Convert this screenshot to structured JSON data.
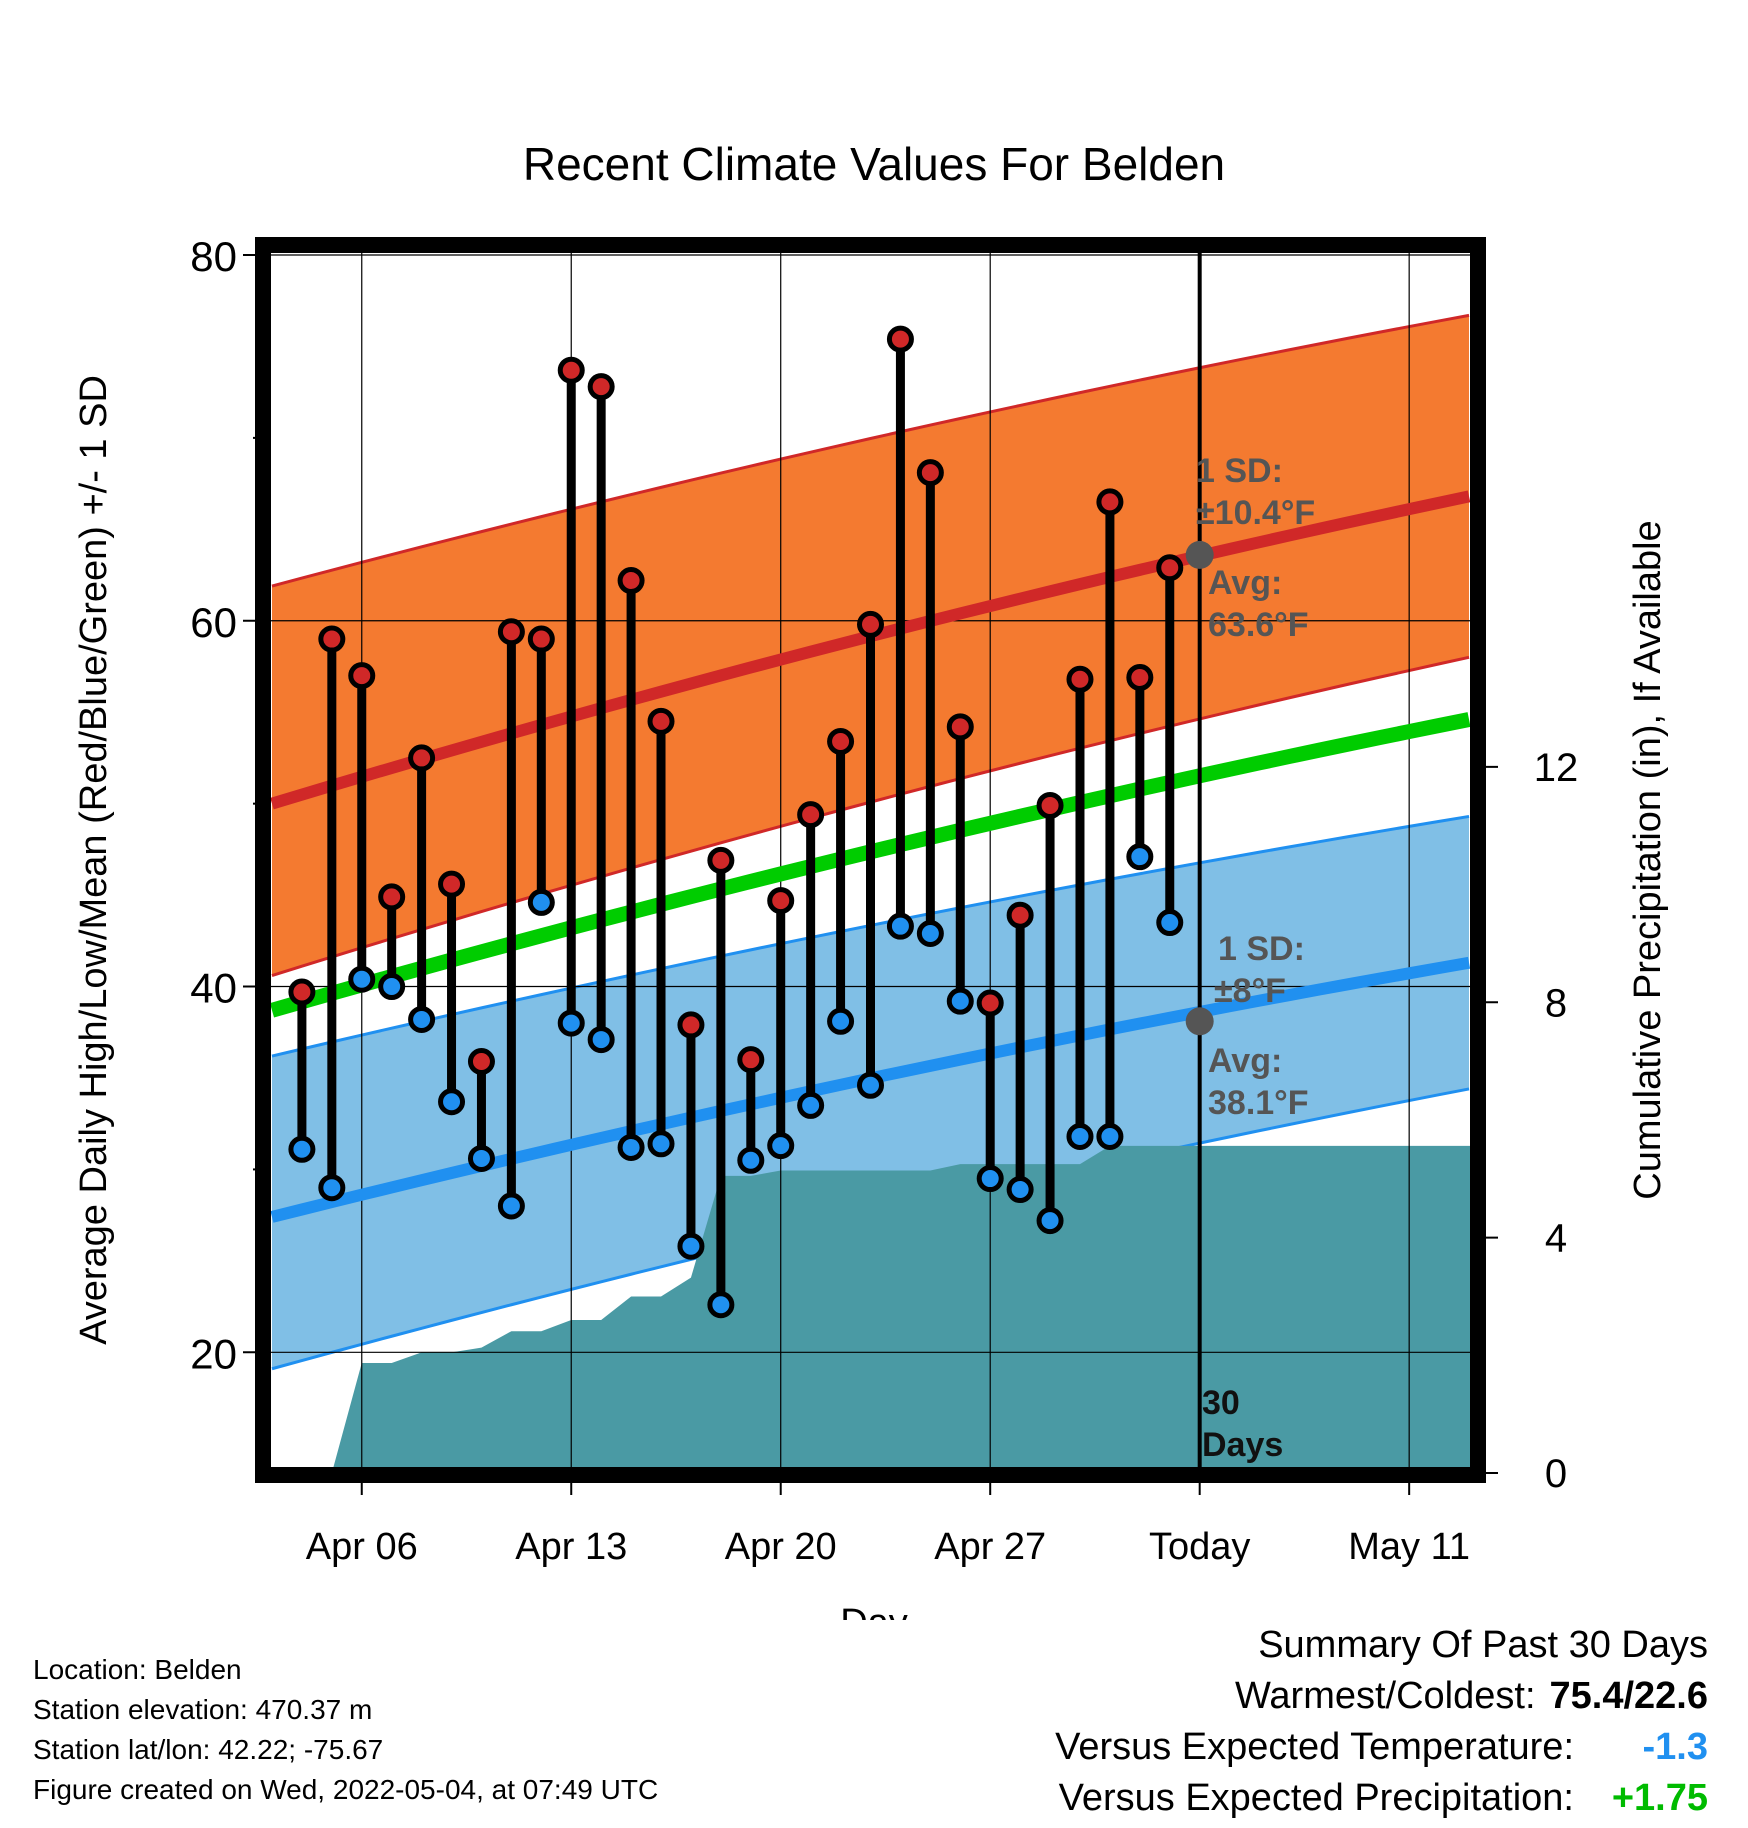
{
  "chart_data": {
    "type": "line",
    "title": "Recent Climate Values For Belden",
    "xlabel": "Day",
    "ylabel": "Average Daily High/Low/Mean (Red/Blue/Green) +/- 1 SD",
    "y2label": "Cumulative Precipitation (in), If Available",
    "ylim": [
      13.4,
      80
    ],
    "y2lim": [
      0,
      20.7
    ],
    "yticks": [
      "20",
      "40",
      "60",
      "80"
    ],
    "y2ticks": [
      "0",
      "4",
      "8",
      "12"
    ],
    "xticks": [
      "Apr 06",
      "Apr 13",
      "Apr 20",
      "Apr 27",
      "Today",
      "May 11"
    ],
    "xtick_days": [
      3,
      10,
      17,
      24,
      31,
      38
    ],
    "xlim": [
      -0.3,
      40.3
    ],
    "today_day": 31,
    "daily": {
      "day": [
        1,
        2,
        3,
        4,
        5,
        6,
        7,
        8,
        9,
        10,
        11,
        12,
        13,
        14,
        15,
        16,
        17,
        18,
        19,
        20,
        21,
        22,
        23,
        24,
        25,
        26,
        27,
        28,
        29,
        30
      ],
      "high": [
        39.7,
        59.0,
        57.0,
        44.9,
        52.5,
        45.6,
        35.9,
        59.4,
        59.0,
        73.7,
        72.8,
        62.2,
        54.5,
        37.9,
        46.9,
        36.0,
        44.7,
        49.4,
        53.4,
        59.8,
        75.4,
        68.1,
        54.2,
        39.1,
        43.9,
        49.9,
        56.8,
        66.5,
        56.9,
        62.9
      ],
      "low": [
        31.1,
        29.0,
        40.4,
        40.0,
        38.2,
        33.7,
        30.6,
        28.0,
        44.6,
        38.0,
        37.1,
        31.2,
        31.4,
        25.8,
        22.6,
        30.5,
        31.3,
        33.5,
        38.1,
        34.6,
        43.3,
        42.9,
        39.2,
        29.5,
        28.9,
        27.2,
        31.8,
        31.8,
        47.1,
        43.5
      ]
    },
    "normals": {
      "day": [
        0,
        40
      ],
      "high_mean": [
        50.0,
        66.8
      ],
      "high_sd_upper": [
        61.9,
        76.7
      ],
      "high_sd_lower": [
        40.6,
        58.0
      ],
      "low_mean": [
        27.4,
        41.3
      ],
      "low_sd_upper": [
        36.2,
        49.3
      ],
      "low_sd_lower": [
        19.1,
        34.4
      ],
      "mean": [
        38.7,
        54.6
      ]
    },
    "precip": {
      "day": [
        2,
        3,
        4,
        5,
        6,
        7,
        8,
        9,
        10,
        11,
        12,
        13,
        14,
        15,
        16,
        17,
        18,
        19,
        20,
        21,
        22,
        23,
        24,
        25,
        26,
        27,
        28,
        29,
        30,
        31,
        40.3
      ],
      "cumulative": [
        0,
        1.87,
        1.87,
        2.05,
        2.05,
        2.13,
        2.41,
        2.41,
        2.6,
        2.6,
        3.0,
        3.0,
        3.32,
        5.05,
        5.05,
        5.14,
        5.14,
        5.14,
        5.14,
        5.14,
        5.14,
        5.25,
        5.25,
        5.25,
        5.25,
        5.25,
        5.56,
        5.56,
        5.56,
        5.56,
        5.56
      ]
    },
    "annotations": {
      "high_sd": "1 SD:",
      "high_sd_value": "±10.4°F",
      "high_avg": "Avg:",
      "high_avg_value": "63.6°F",
      "low_sd": "1 SD:",
      "low_sd_value": "±8°F",
      "low_avg": "Avg:",
      "low_avg_value": "38.1°F",
      "days_count": "30",
      "days_label": "Days"
    },
    "today_avg_high": 63.6,
    "today_avg_low": 38.1,
    "colors": {
      "high_band": "#f47a30",
      "high_line": "#d02828",
      "low_band": "#80bfe6",
      "low_line": "#2090f0",
      "mean_line": "#00cc00",
      "precip": "#4a9aa4",
      "high_marker": "#d02828",
      "low_marker": "#2090f0",
      "annotation": "#555555"
    }
  },
  "footer": {
    "location": "Location: Belden",
    "elevation": "Station elevation: 470.37 m",
    "latlon": "Station lat/lon: 42.22; -75.67",
    "created": "Figure created on Wed, 2022-05-04, at 07:49 UTC"
  },
  "summary": {
    "title": "Summary Of Past 30 Days",
    "warmest_label": "Warmest/Coldest:",
    "warmest_value": "75.4/22.6",
    "temp_label": "Versus Expected Temperature:",
    "temp_value": "-1.3",
    "temp_color": "#2090f0",
    "precip_label": "Versus Expected Precipitation:",
    "precip_value": "+1.75",
    "precip_color": "#00bb00"
  }
}
